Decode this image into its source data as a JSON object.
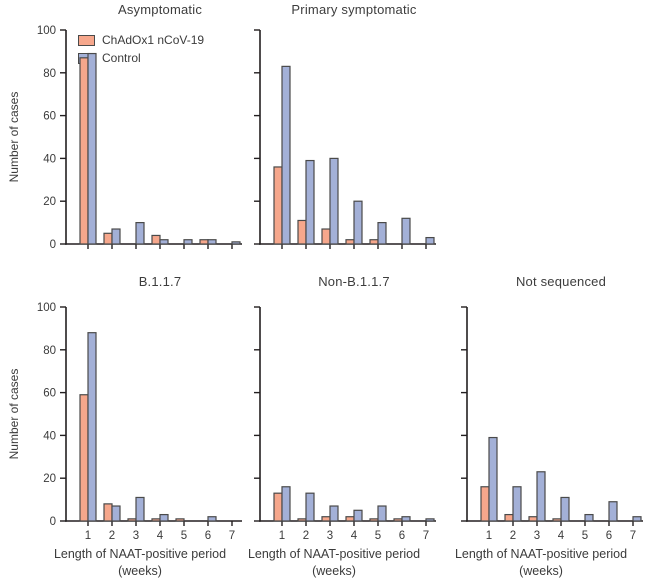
{
  "figure": {
    "y_axis_label": "Number of cases",
    "x_axis_caption_line1": "Length of NAAT-positive period",
    "x_axis_caption_line2": "(weeks)",
    "legend": {
      "items": [
        {
          "label": "ChAdOx1 nCoV-19",
          "color": "#F6A78C"
        },
        {
          "label": "Control",
          "color": "#A3B0D7"
        }
      ]
    },
    "colors": {
      "chadox_fill": "#F6A78C",
      "control_fill": "#A3B0D7",
      "bar_border": "#4a4a4a",
      "axis": "#231f20",
      "text": "#3b3b3b"
    }
  },
  "chart_data": {
    "type": "bar",
    "categories": [
      1,
      2,
      3,
      4,
      5,
      6,
      7
    ],
    "xlabel": "Length of NAAT-positive period (weeks)",
    "ylabel": "Number of cases",
    "ylim": [
      0,
      100
    ],
    "yticks": [
      0,
      20,
      40,
      60,
      80,
      100
    ],
    "grid": false,
    "legend_position": "top-left-of-first-chart",
    "charts": [
      {
        "title": "Asymptomatic",
        "show_y_tick_labels": true,
        "show_x_tick_labels": false,
        "series": [
          {
            "name": "ChAdOx1 nCoV-19",
            "values": [
              87,
              5,
              0,
              4,
              0,
              2,
              0
            ]
          },
          {
            "name": "Control",
            "values": [
              89,
              7,
              10,
              2,
              2,
              2,
              1
            ]
          }
        ]
      },
      {
        "title": "Primary symptomatic",
        "show_y_tick_labels": false,
        "show_x_tick_labels": false,
        "series": [
          {
            "name": "ChAdOx1 nCoV-19",
            "values": [
              36,
              11,
              7,
              2,
              2,
              0,
              0
            ]
          },
          {
            "name": "Control",
            "values": [
              83,
              39,
              40,
              20,
              10,
              12,
              3
            ]
          }
        ]
      },
      {
        "title": "B.1.1.7",
        "show_y_tick_labels": true,
        "show_x_tick_labels": true,
        "series": [
          {
            "name": "ChAdOx1 nCoV-19",
            "values": [
              59,
              8,
              1,
              1,
              1,
              0,
              0
            ]
          },
          {
            "name": "Control",
            "values": [
              88,
              7,
              11,
              3,
              0,
              2,
              0
            ]
          }
        ]
      },
      {
        "title": "Non-B.1.1.7",
        "show_y_tick_labels": false,
        "show_x_tick_labels": true,
        "series": [
          {
            "name": "ChAdOx1 nCoV-19",
            "values": [
              13,
              1,
              2,
              2,
              1,
              1,
              0
            ]
          },
          {
            "name": "Control",
            "values": [
              16,
              13,
              7,
              5,
              7,
              2,
              1
            ]
          }
        ]
      },
      {
        "title": "Not sequenced",
        "show_y_tick_labels": false,
        "show_x_tick_labels": true,
        "series": [
          {
            "name": "ChAdOx1 nCoV-19",
            "values": [
              16,
              3,
              2,
              1,
              0,
              0,
              0
            ]
          },
          {
            "name": "Control",
            "values": [
              39,
              16,
              23,
              11,
              3,
              9,
              2
            ]
          }
        ]
      }
    ]
  }
}
